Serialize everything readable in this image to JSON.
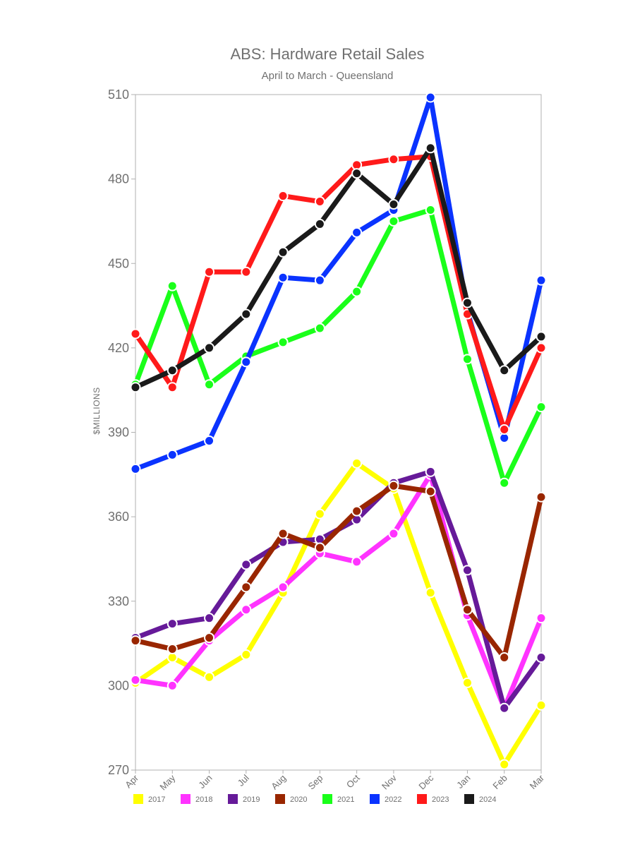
{
  "chart_data": {
    "type": "line",
    "title": "ABS: Hardware Retail Sales",
    "subtitle": "April to March - Queensland",
    "ylabel": "$MILLIONS",
    "xlabel": "",
    "ylim": [
      270,
      510
    ],
    "yticks": [
      270,
      300,
      330,
      360,
      390,
      420,
      450,
      480,
      510
    ],
    "grid": false,
    "legend_position": "bottom",
    "categories": [
      "Apr",
      "May",
      "Jun",
      "Jul",
      "Aug",
      "Sep",
      "Oct",
      "Nov",
      "Dec",
      "Jan",
      "Feb",
      "Mar"
    ],
    "series": [
      {
        "name": "2017",
        "color": "#ffff00",
        "values": [
          301,
          310,
          303,
          311,
          333,
          361,
          379,
          370,
          333,
          301,
          272,
          293
        ]
      },
      {
        "name": "2018",
        "color": "#ff33ff",
        "values": [
          302,
          300,
          316,
          327,
          335,
          347,
          344,
          354,
          375,
          325,
          292,
          324
        ]
      },
      {
        "name": "2019",
        "color": "#661a99",
        "values": [
          317,
          322,
          324,
          343,
          351,
          352,
          359,
          372,
          376,
          341,
          292,
          310
        ]
      },
      {
        "name": "2020",
        "color": "#992600",
        "values": [
          316,
          313,
          317,
          335,
          354,
          349,
          362,
          371,
          369,
          327,
          310,
          367
        ]
      },
      {
        "name": "2021",
        "color": "#1aff1a",
        "values": [
          407,
          442,
          407,
          417,
          422,
          427,
          440,
          465,
          469,
          416,
          372,
          399
        ]
      },
      {
        "name": "2022",
        "color": "#0a33ff",
        "values": [
          377,
          382,
          387,
          415,
          445,
          444,
          461,
          469,
          509,
          433,
          388,
          444
        ]
      },
      {
        "name": "2023",
        "color": "#ff1a1a",
        "values": [
          425,
          406,
          447,
          447,
          474,
          472,
          485,
          487,
          488,
          432,
          391,
          420
        ]
      },
      {
        "name": "2024",
        "color": "#1a1a1a",
        "values": [
          406,
          412,
          420,
          432,
          454,
          464,
          482,
          471,
          491,
          436,
          412,
          424
        ]
      }
    ]
  }
}
